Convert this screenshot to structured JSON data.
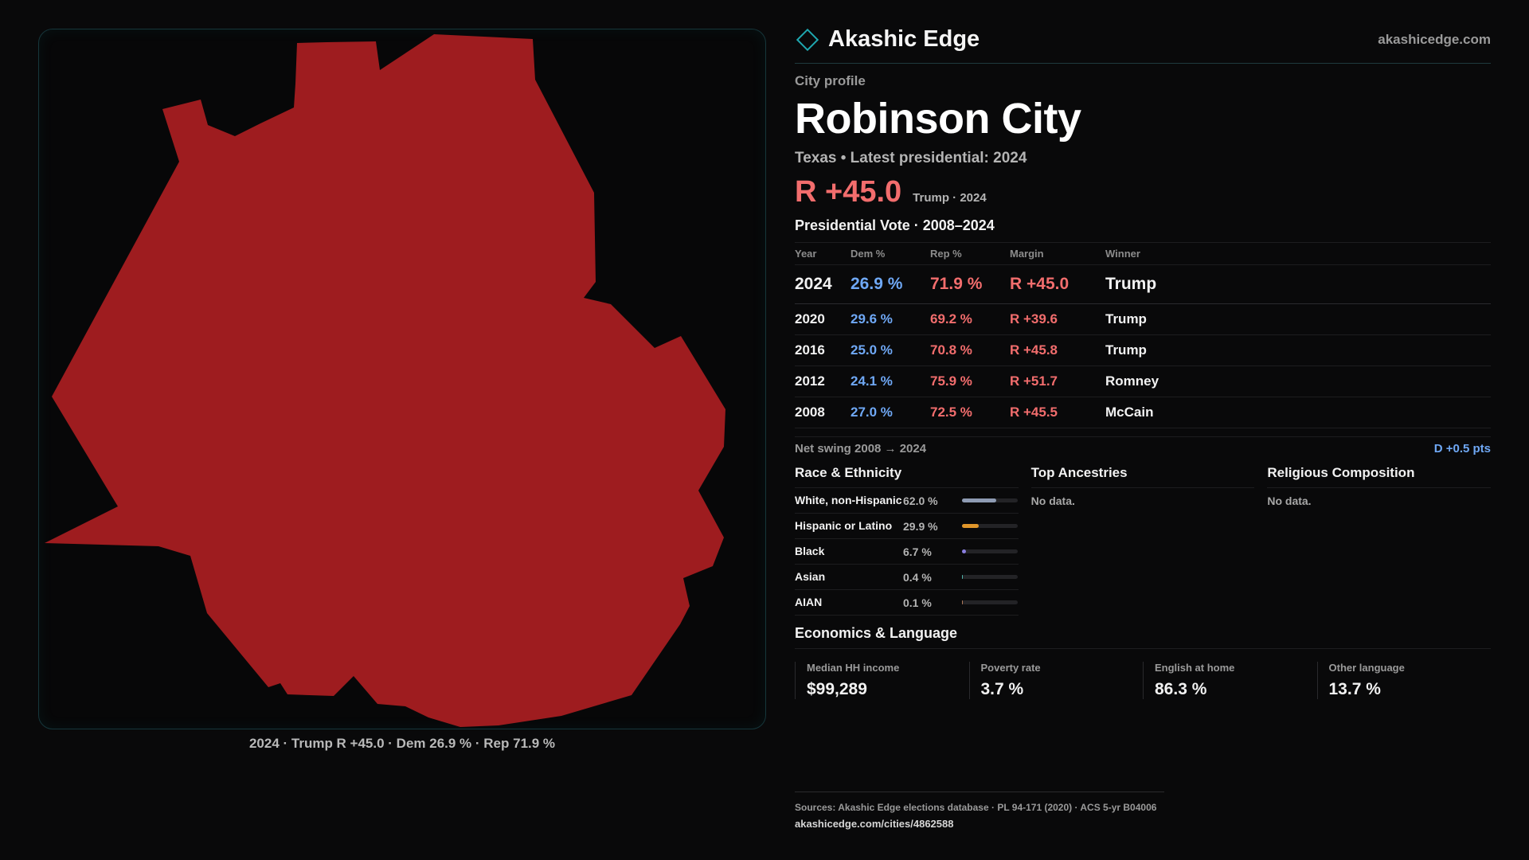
{
  "map": {
    "fill_color": "#9e1c1f",
    "caption": "2024 · Trump R +45.0 · Dem 26.9 % · Rep 71.9 %"
  },
  "header": {
    "brand": "Akashic Edge",
    "site": "akashicedge.com",
    "icon": "diamond-logo-icon"
  },
  "profile": {
    "kicker": "City profile",
    "city": "Robinson City",
    "subline": "Texas • Latest presidential: 2024",
    "margin": "R +45.0",
    "margin_note": "Trump · 2024"
  },
  "votes": {
    "title": "Presidential Vote · 2008–2024",
    "headers": {
      "year": "Year",
      "dem": "Dem %",
      "rep": "Rep %",
      "margin": "Margin",
      "winner": "Winner"
    },
    "rows": [
      {
        "year": "2024",
        "dem": "26.9 %",
        "rep": "71.9 %",
        "margin": "R +45.0",
        "winner": "Trump"
      },
      {
        "year": "2020",
        "dem": "29.6 %",
        "rep": "69.2 %",
        "margin": "R +39.6",
        "winner": "Trump"
      },
      {
        "year": "2016",
        "dem": "25.0 %",
        "rep": "70.8 %",
        "margin": "R +45.8",
        "winner": "Trump"
      },
      {
        "year": "2012",
        "dem": "24.1 %",
        "rep": "75.9 %",
        "margin": "R +51.7",
        "winner": "Romney"
      },
      {
        "year": "2008",
        "dem": "27.0 %",
        "rep": "72.5 %",
        "margin": "R +45.5",
        "winner": "McCain"
      }
    ],
    "swing_label": "Net swing 2008 → 2024",
    "swing_value": "D +0.5 pts"
  },
  "race": {
    "title": "Race & Ethnicity",
    "rows": [
      {
        "label": "White, non-Hispanic",
        "pct": "62.0 %",
        "value": 62.0,
        "color": "#8e9bb3"
      },
      {
        "label": "Hispanic or Latino",
        "pct": "29.9 %",
        "value": 29.9,
        "color": "#e0962a"
      },
      {
        "label": "Black",
        "pct": "6.7 %",
        "value": 6.7,
        "color": "#8a7ee0"
      },
      {
        "label": "Asian",
        "pct": "0.4 %",
        "value": 0.4,
        "color": "#4fb3a8"
      },
      {
        "label": "AIAN",
        "pct": "0.1 %",
        "value": 0.1,
        "color": "#b07a5a"
      }
    ]
  },
  "ancestries": {
    "title": "Top Ancestries",
    "empty": "No data."
  },
  "religion": {
    "title": "Religious Composition",
    "empty": "No data."
  },
  "economics": {
    "title": "Economics & Language",
    "cells": [
      {
        "label": "Median HH income",
        "value": "$99,289"
      },
      {
        "label": "Poverty rate",
        "value": "3.7 %"
      },
      {
        "label": "English at home",
        "value": "86.3 %"
      },
      {
        "label": "Other language",
        "value": "13.7 %"
      }
    ]
  },
  "footer": {
    "sources": "Sources: Akashic Edge elections database · PL 94-171 (2020) · ACS 5-yr B04006",
    "url": "akashicedge.com/cities/4862588"
  }
}
